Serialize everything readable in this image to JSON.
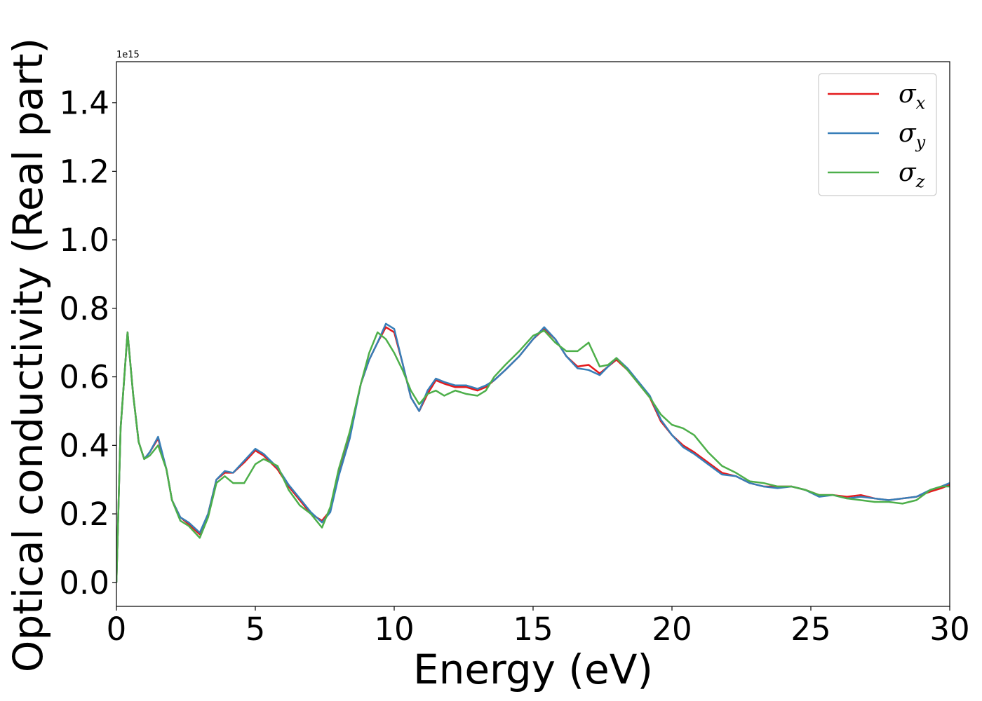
{
  "chart_data": {
    "type": "line",
    "xlabel": "Energy (eV)",
    "ylabel": "Optical conductivity (Real part)",
    "y_offset_text": "1e15",
    "xlim": [
      0,
      30
    ],
    "ylim": [
      -0.07,
      1.52
    ],
    "xticks": [
      0,
      5,
      10,
      15,
      20,
      25,
      30
    ],
    "xtick_labels": [
      "0",
      "5",
      "10",
      "15",
      "20",
      "25",
      "30"
    ],
    "yticks": [
      0.0,
      0.2,
      0.4,
      0.6,
      0.8,
      1.0,
      1.2,
      1.4
    ],
    "ytick_labels": [
      "0.0",
      "0.2",
      "0.4",
      "0.6",
      "0.8",
      "1.0",
      "1.2",
      "1.4"
    ],
    "grid": false,
    "legend_position": "top-right",
    "series": [
      {
        "name": "σx",
        "symbol": "σ",
        "subscript": "x",
        "color": "#e41a1c",
        "x": [
          0,
          0.15,
          0.4,
          0.6,
          0.8,
          1.0,
          1.2,
          1.5,
          1.8,
          2.0,
          2.3,
          2.6,
          3.0,
          3.3,
          3.6,
          3.9,
          4.2,
          4.6,
          5.0,
          5.3,
          5.8,
          6.2,
          6.6,
          7.0,
          7.4,
          7.7,
          8.0,
          8.4,
          8.8,
          9.1,
          9.4,
          9.7,
          10.0,
          10.3,
          10.6,
          10.9,
          11.2,
          11.5,
          11.8,
          12.2,
          12.6,
          13.0,
          13.3,
          13.6,
          14.0,
          14.5,
          15.0,
          15.4,
          15.8,
          16.2,
          16.6,
          17.0,
          17.4,
          17.7,
          18.0,
          18.4,
          18.8,
          19.2,
          19.6,
          20.0,
          20.4,
          20.8,
          21.3,
          21.8,
          22.3,
          22.8,
          23.3,
          23.8,
          24.3,
          24.8,
          25.3,
          25.8,
          26.3,
          26.8,
          27.3,
          27.8,
          28.3,
          28.8,
          29.3,
          29.7,
          30.0
        ],
        "values": [
          0.0,
          0.45,
          0.73,
          0.55,
          0.41,
          0.36,
          0.38,
          0.42,
          0.33,
          0.24,
          0.19,
          0.17,
          0.14,
          0.2,
          0.3,
          0.32,
          0.32,
          0.35,
          0.385,
          0.37,
          0.33,
          0.28,
          0.24,
          0.2,
          0.18,
          0.21,
          0.32,
          0.43,
          0.58,
          0.65,
          0.7,
          0.745,
          0.73,
          0.64,
          0.54,
          0.5,
          0.55,
          0.59,
          0.58,
          0.57,
          0.57,
          0.56,
          0.57,
          0.59,
          0.62,
          0.66,
          0.71,
          0.74,
          0.71,
          0.66,
          0.63,
          0.635,
          0.61,
          0.63,
          0.65,
          0.62,
          0.58,
          0.54,
          0.47,
          0.43,
          0.4,
          0.38,
          0.35,
          0.32,
          0.31,
          0.29,
          0.28,
          0.28,
          0.28,
          0.27,
          0.255,
          0.255,
          0.25,
          0.255,
          0.245,
          0.24,
          0.245,
          0.25,
          0.265,
          0.275,
          0.285
        ]
      },
      {
        "name": "σy",
        "symbol": "σ",
        "subscript": "y",
        "color": "#377eb8",
        "x": [
          0,
          0.15,
          0.4,
          0.6,
          0.8,
          1.0,
          1.2,
          1.5,
          1.8,
          2.0,
          2.3,
          2.6,
          3.0,
          3.3,
          3.6,
          3.9,
          4.2,
          4.6,
          5.0,
          5.3,
          5.8,
          6.2,
          6.6,
          7.0,
          7.4,
          7.7,
          8.0,
          8.4,
          8.8,
          9.1,
          9.4,
          9.7,
          10.0,
          10.3,
          10.6,
          10.9,
          11.2,
          11.5,
          11.8,
          12.2,
          12.6,
          13.0,
          13.3,
          13.6,
          14.0,
          14.5,
          15.0,
          15.4,
          15.8,
          16.2,
          16.6,
          17.0,
          17.4,
          17.7,
          18.0,
          18.4,
          18.8,
          19.2,
          19.6,
          20.0,
          20.4,
          20.8,
          21.3,
          21.8,
          22.3,
          22.8,
          23.3,
          23.8,
          24.3,
          24.8,
          25.3,
          25.8,
          26.3,
          26.8,
          27.3,
          27.8,
          28.3,
          28.8,
          29.3,
          29.7,
          30.0
        ],
        "values": [
          0.0,
          0.45,
          0.73,
          0.55,
          0.41,
          0.36,
          0.38,
          0.425,
          0.33,
          0.24,
          0.19,
          0.175,
          0.145,
          0.2,
          0.3,
          0.325,
          0.32,
          0.355,
          0.39,
          0.375,
          0.335,
          0.285,
          0.245,
          0.205,
          0.175,
          0.205,
          0.31,
          0.42,
          0.58,
          0.65,
          0.7,
          0.755,
          0.74,
          0.64,
          0.54,
          0.5,
          0.56,
          0.595,
          0.585,
          0.575,
          0.575,
          0.565,
          0.575,
          0.59,
          0.62,
          0.66,
          0.71,
          0.745,
          0.71,
          0.66,
          0.625,
          0.62,
          0.605,
          0.63,
          0.655,
          0.625,
          0.585,
          0.545,
          0.475,
          0.43,
          0.395,
          0.375,
          0.345,
          0.315,
          0.31,
          0.29,
          0.28,
          0.275,
          0.28,
          0.27,
          0.25,
          0.255,
          0.245,
          0.25,
          0.245,
          0.24,
          0.245,
          0.25,
          0.27,
          0.28,
          0.29
        ]
      },
      {
        "name": "σz",
        "symbol": "σ",
        "subscript": "z",
        "color": "#4daf4a",
        "x": [
          0,
          0.15,
          0.4,
          0.6,
          0.8,
          1.0,
          1.2,
          1.5,
          1.8,
          2.0,
          2.3,
          2.6,
          3.0,
          3.3,
          3.6,
          3.9,
          4.2,
          4.6,
          5.0,
          5.3,
          5.8,
          6.2,
          6.6,
          7.0,
          7.4,
          7.7,
          8.0,
          8.4,
          8.8,
          9.1,
          9.4,
          9.7,
          10.0,
          10.3,
          10.6,
          10.9,
          11.2,
          11.5,
          11.8,
          12.2,
          12.6,
          13.0,
          13.3,
          13.6,
          14.0,
          14.5,
          15.0,
          15.4,
          15.8,
          16.2,
          16.6,
          17.0,
          17.4,
          17.7,
          18.0,
          18.4,
          18.8,
          19.2,
          19.6,
          20.0,
          20.4,
          20.8,
          21.3,
          21.8,
          22.3,
          22.8,
          23.3,
          23.8,
          24.3,
          24.8,
          25.3,
          25.8,
          26.3,
          26.8,
          27.3,
          27.8,
          28.3,
          28.8,
          29.3,
          29.7,
          30.0
        ],
        "values": [
          0.0,
          0.45,
          0.73,
          0.55,
          0.41,
          0.36,
          0.37,
          0.4,
          0.33,
          0.24,
          0.18,
          0.165,
          0.13,
          0.19,
          0.29,
          0.31,
          0.29,
          0.29,
          0.345,
          0.36,
          0.34,
          0.27,
          0.225,
          0.2,
          0.16,
          0.22,
          0.33,
          0.44,
          0.58,
          0.67,
          0.73,
          0.71,
          0.67,
          0.62,
          0.56,
          0.52,
          0.55,
          0.56,
          0.545,
          0.56,
          0.55,
          0.545,
          0.56,
          0.6,
          0.635,
          0.675,
          0.72,
          0.735,
          0.7,
          0.675,
          0.675,
          0.7,
          0.63,
          0.635,
          0.655,
          0.62,
          0.58,
          0.54,
          0.49,
          0.46,
          0.45,
          0.43,
          0.38,
          0.34,
          0.32,
          0.295,
          0.29,
          0.28,
          0.28,
          0.27,
          0.255,
          0.255,
          0.245,
          0.24,
          0.235,
          0.235,
          0.23,
          0.24,
          0.27,
          0.28,
          0.28
        ]
      }
    ]
  }
}
